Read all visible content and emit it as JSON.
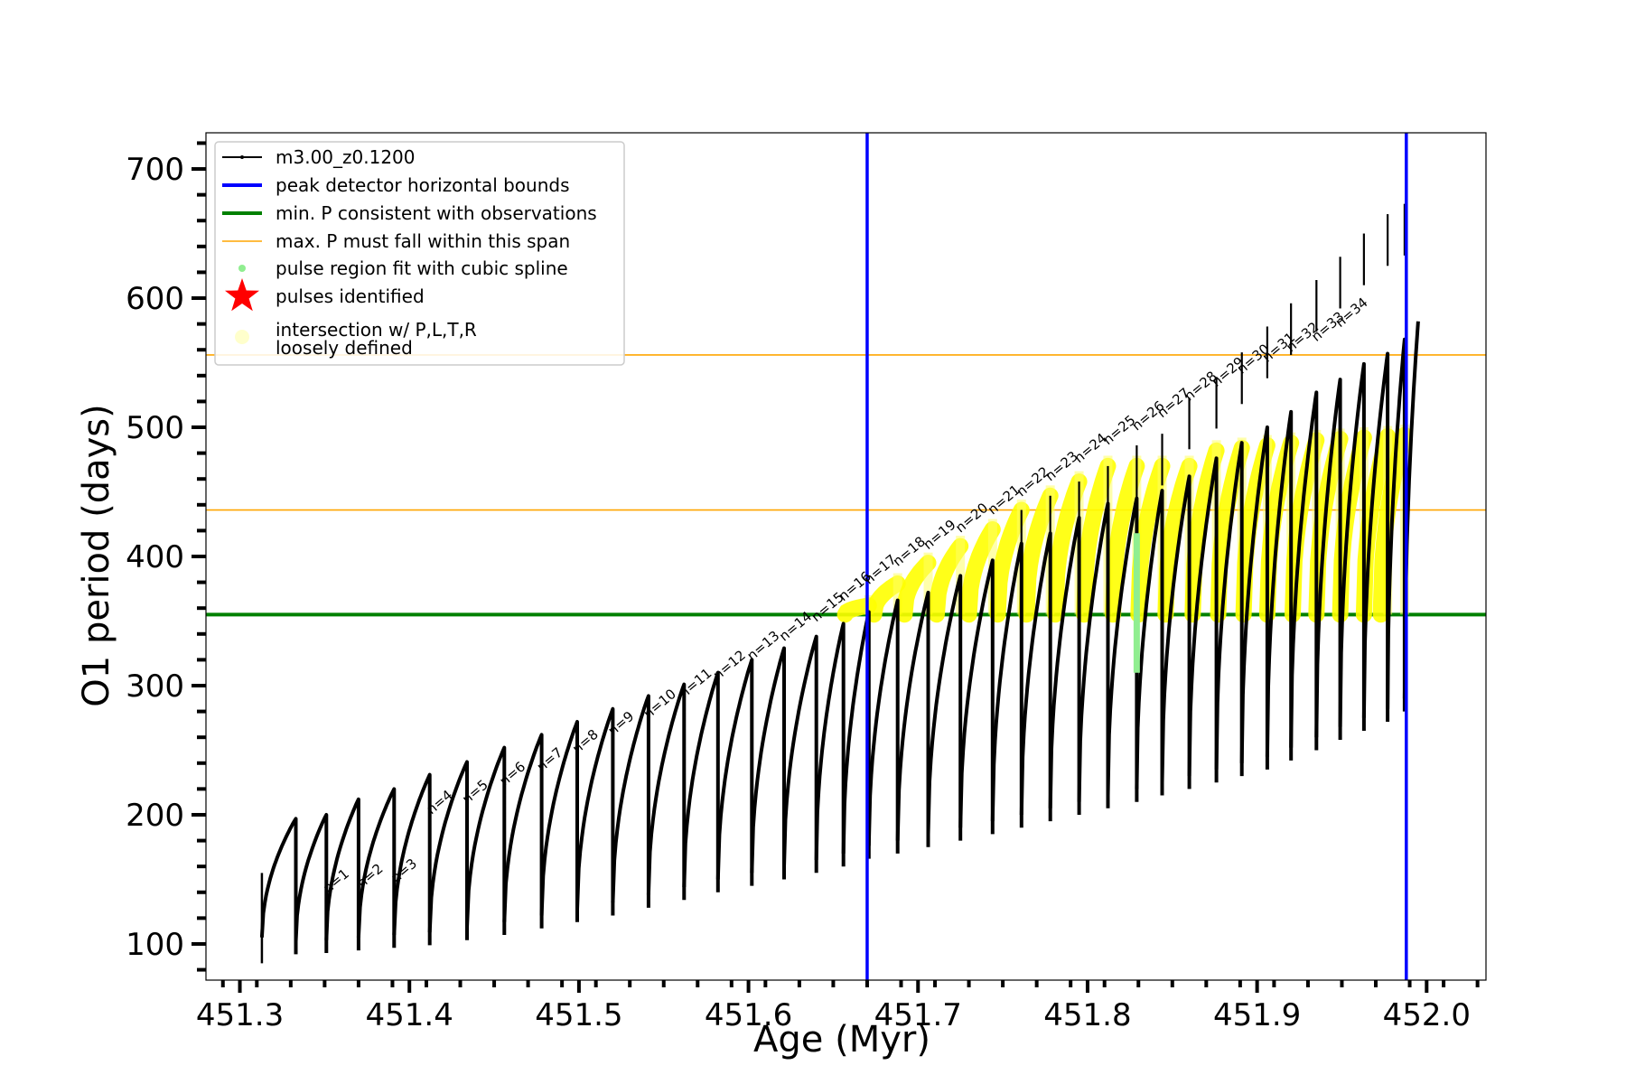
{
  "chart_data": {
    "type": "line",
    "title": "",
    "xlabel": "Age (Myr)",
    "ylabel": "O1 period (days)",
    "xlim": [
      451.28,
      452.035
    ],
    "ylim": [
      72,
      728
    ],
    "xticks": [
      451.3,
      451.4,
      451.5,
      451.6,
      451.7,
      451.8,
      451.9,
      452.0
    ],
    "xtick_labels": [
      "451.3",
      "451.4",
      "451.5",
      "451.6",
      "451.7",
      "451.8",
      "451.9",
      "452.0"
    ],
    "yticks": [
      100,
      200,
      300,
      400,
      500,
      600,
      700
    ],
    "ytick_labels": [
      "100",
      "200",
      "300",
      "400",
      "500",
      "600",
      "700"
    ],
    "grid": false,
    "legend_position": "upper-left",
    "legend": [
      {
        "label": "m3.00_z0.1200",
        "marker": "line-dot",
        "color": "#000000"
      },
      {
        "label": "peak detector horizontal bounds",
        "marker": "line",
        "color": "#0000ff"
      },
      {
        "label": "min. P consistent with observations",
        "marker": "line",
        "color": "#008000"
      },
      {
        "label": "max. P must fall within this span",
        "marker": "thin-line",
        "color": "#ffa500"
      },
      {
        "label": "pulse region fit with cubic spline",
        "marker": "dot",
        "color": "#90ee90"
      },
      {
        "label": "pulses identified",
        "marker": "star",
        "color": "#ff0000"
      },
      {
        "label": "intersection w/ P,L,T,R\nloosely defined",
        "marker": "circle",
        "color": "#ffffcc"
      }
    ],
    "vertical_lines": [
      {
        "x": 451.67,
        "color": "#0000ff"
      },
      {
        "x": 451.988,
        "color": "#0000ff"
      }
    ],
    "horizontal_lines": [
      {
        "y": 355,
        "color": "#008000",
        "width": "thick"
      },
      {
        "y": 436,
        "color": "#ffa500",
        "width": "thin"
      },
      {
        "y": 556,
        "color": "#ffa500",
        "width": "thin"
      }
    ],
    "track_start": {
      "age": 451.313,
      "period": 155
    },
    "track_end": {
      "age": 451.995,
      "period": 582
    },
    "pulses": [
      {
        "n": 1,
        "age": 451.333,
        "peak": 197,
        "min": 92
      },
      {
        "n": 2,
        "age": 451.351,
        "peak": 200,
        "min": 93
      },
      {
        "n": 3,
        "age": 451.37,
        "peak": 212,
        "min": 95
      },
      {
        "n": 4,
        "age": 451.391,
        "peak": 220,
        "min": 97
      },
      {
        "n": 5,
        "age": 451.412,
        "peak": 231,
        "min": 99
      },
      {
        "n": 6,
        "age": 451.434,
        "peak": 241,
        "min": 103
      },
      {
        "n": 7,
        "age": 451.456,
        "peak": 252,
        "min": 107
      },
      {
        "n": 8,
        "age": 451.478,
        "peak": 262,
        "min": 112
      },
      {
        "n": 9,
        "age": 451.499,
        "peak": 272,
        "min": 117
      },
      {
        "n": 10,
        "age": 451.52,
        "peak": 282,
        "min": 122
      },
      {
        "n": 11,
        "age": 451.541,
        "peak": 292,
        "min": 128
      },
      {
        "n": 12,
        "age": 451.562,
        "peak": 301,
        "min": 134
      },
      {
        "n": 13,
        "age": 451.582,
        "peak": 310,
        "min": 140
      },
      {
        "n": 14,
        "age": 451.602,
        "peak": 320,
        "min": 145
      },
      {
        "n": 15,
        "age": 451.621,
        "peak": 329,
        "min": 150
      },
      {
        "n": 16,
        "age": 451.64,
        "peak": 338,
        "min": 155
      },
      {
        "n": 17,
        "age": 451.656,
        "peak": 348,
        "min": 160
      },
      {
        "n": 18,
        "age": 451.671,
        "peak": 357,
        "min": 166
      },
      {
        "n": 19,
        "age": 451.688,
        "peak": 366,
        "min": 170
      },
      {
        "n": 20,
        "age": 451.706,
        "peak": 372,
        "min": 175
      },
      {
        "n": 21,
        "age": 451.725,
        "peak": 385,
        "min": 180
      },
      {
        "n": 22,
        "age": 451.744,
        "peak": 397,
        "min": 185
      },
      {
        "n": 23,
        "age": 451.761,
        "peak": 410,
        "min": 190
      },
      {
        "n": 24,
        "age": 451.778,
        "peak": 418,
        "min": 195
      },
      {
        "n": 25,
        "age": 451.795,
        "peak": 430,
        "min": 200
      },
      {
        "n": 26,
        "age": 451.812,
        "peak": 441,
        "min": 205
      },
      {
        "n": 27,
        "age": 451.829,
        "peak": 445,
        "min": 210
      },
      {
        "n": 28,
        "age": 451.844,
        "peak": 451,
        "min": 215
      },
      {
        "n": 29,
        "age": 451.86,
        "peak": 462,
        "min": 220
      },
      {
        "n": 30,
        "age": 451.876,
        "peak": 476,
        "min": 225
      },
      {
        "n": 31,
        "age": 451.891,
        "peak": 488,
        "min": 230
      },
      {
        "n": 32,
        "age": 451.906,
        "peak": 500,
        "min": 235
      },
      {
        "n": 33,
        "age": 451.92,
        "peak": 512,
        "min": 242
      },
      {
        "n": 34,
        "age": 451.935,
        "peak": 527,
        "min": 250
      },
      {
        "n": 35,
        "age": 451.949,
        "peak": 537,
        "min": 258
      },
      {
        "n": 36,
        "age": 451.963,
        "peak": 549,
        "min": 265
      },
      {
        "n": 37,
        "age": 451.977,
        "peak": 557,
        "min": 272
      },
      {
        "n": 38,
        "age": 451.987,
        "peak": 568,
        "min": 280
      }
    ],
    "peak_labels": [
      {
        "text": "n=1",
        "age": 451.352,
        "period": 139
      },
      {
        "text": "n=2",
        "age": 451.372,
        "period": 143
      },
      {
        "text": "n=3",
        "age": 451.392,
        "period": 147
      },
      {
        "text": "n=4",
        "age": 451.413,
        "period": 200
      },
      {
        "text": "n=5",
        "age": 451.434,
        "period": 208
      },
      {
        "text": "n=6",
        "age": 451.456,
        "period": 222
      },
      {
        "text": "n=7",
        "age": 451.478,
        "period": 233
      },
      {
        "text": "n=8",
        "age": 451.499,
        "period": 247
      },
      {
        "text": "n=9",
        "age": 451.52,
        "period": 261
      },
      {
        "text": "n=10",
        "age": 451.541,
        "period": 274
      },
      {
        "text": "n=11",
        "age": 451.562,
        "period": 290
      },
      {
        "text": "n=12",
        "age": 451.582,
        "period": 304
      },
      {
        "text": "n=13",
        "age": 451.602,
        "period": 319
      },
      {
        "text": "n=14",
        "age": 451.621,
        "period": 334
      },
      {
        "text": "n=15",
        "age": 451.64,
        "period": 349
      },
      {
        "text": "n=16",
        "age": 451.656,
        "period": 365
      },
      {
        "text": "n=17",
        "age": 451.671,
        "period": 378
      },
      {
        "text": "n=18",
        "age": 451.688,
        "period": 392
      },
      {
        "text": "n=19",
        "age": 451.706,
        "period": 405
      },
      {
        "text": "n=20",
        "age": 451.725,
        "period": 418
      },
      {
        "text": "n=21",
        "age": 451.744,
        "period": 432
      },
      {
        "text": "n=22",
        "age": 451.761,
        "period": 446
      },
      {
        "text": "n=23",
        "age": 451.778,
        "period": 458
      },
      {
        "text": "n=24",
        "age": 451.795,
        "period": 472
      },
      {
        "text": "n=25",
        "age": 451.812,
        "period": 486
      },
      {
        "text": "n=26",
        "age": 451.829,
        "period": 497
      },
      {
        "text": "n=27",
        "age": 451.844,
        "period": 507
      },
      {
        "text": "n=28",
        "age": 451.86,
        "period": 520
      },
      {
        "text": "n=29",
        "age": 451.876,
        "period": 531
      },
      {
        "text": "n=30",
        "age": 451.891,
        "period": 541
      },
      {
        "text": "n=31",
        "age": 451.906,
        "period": 550
      },
      {
        "text": "n=32",
        "age": 451.92,
        "period": 558
      },
      {
        "text": "n=33",
        "age": 451.935,
        "period": 566
      },
      {
        "text": "n=34",
        "age": 451.949,
        "period": 577
      }
    ],
    "tall_spikes": [
      {
        "age": 451.761,
        "period": 436
      },
      {
        "age": 451.778,
        "period": 447
      },
      {
        "age": 451.795,
        "period": 458
      },
      {
        "age": 451.812,
        "period": 470
      },
      {
        "age": 451.829,
        "period": 486
      },
      {
        "age": 451.844,
        "period": 495
      },
      {
        "age": 451.86,
        "period": 523
      },
      {
        "age": 451.876,
        "period": 539
      },
      {
        "age": 451.891,
        "period": 558
      },
      {
        "age": 451.906,
        "period": 578
      },
      {
        "age": 451.92,
        "period": 596
      },
      {
        "age": 451.935,
        "period": 614
      },
      {
        "age": 451.949,
        "period": 632
      },
      {
        "age": 451.963,
        "period": 650
      },
      {
        "age": 451.977,
        "period": 665
      },
      {
        "age": 451.987,
        "period": 673
      }
    ],
    "yellow_regions": [
      {
        "age": 451.671,
        "peak": 362
      },
      {
        "age": 451.688,
        "peak": 379
      },
      {
        "age": 451.706,
        "peak": 395
      },
      {
        "age": 451.725,
        "peak": 408
      },
      {
        "age": 451.744,
        "peak": 421
      },
      {
        "age": 451.761,
        "peak": 436
      },
      {
        "age": 451.778,
        "peak": 447
      },
      {
        "age": 451.795,
        "peak": 458
      },
      {
        "age": 451.812,
        "peak": 470
      },
      {
        "age": 451.829,
        "peak": 470
      },
      {
        "age": 451.844,
        "peak": 470
      },
      {
        "age": 451.86,
        "peak": 470
      },
      {
        "age": 451.876,
        "peak": 482
      },
      {
        "age": 451.891,
        "peak": 484
      },
      {
        "age": 451.906,
        "peak": 486
      },
      {
        "age": 451.92,
        "peak": 488
      },
      {
        "age": 451.935,
        "peak": 490
      },
      {
        "age": 451.949,
        "peak": 491
      },
      {
        "age": 451.963,
        "peak": 492
      },
      {
        "age": 451.977,
        "peak": 493
      },
      {
        "age": 451.987,
        "peak": 494
      }
    ],
    "spline_region": {
      "age": 451.829,
      "min": 310,
      "max": 418
    }
  }
}
